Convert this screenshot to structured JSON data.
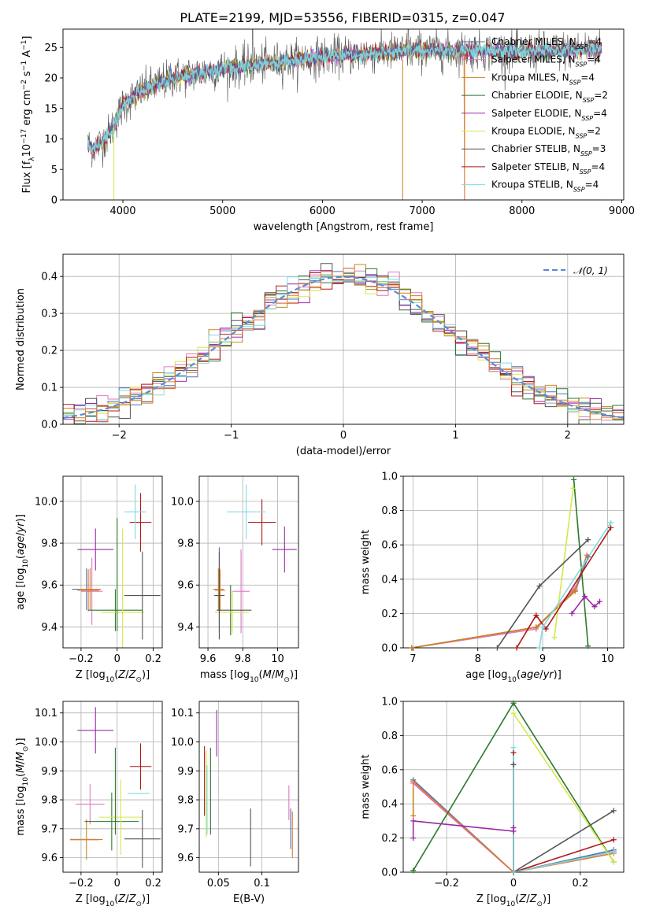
{
  "page_title": "PLATE=2199, MJD=53556, FIBERID=0315, z=0.047",
  "colors": {
    "Chabrier MILES": "#4c72b0",
    "Salpeter MILES": "#e377c2",
    "Kroupa MILES": "#c8861c",
    "Chabrier ELODIE": "#2c7a2c",
    "Salpeter ELODIE": "#9b2aa8",
    "Kroupa ELODIE": "#d4e84a",
    "Chabrier STELIB": "#555555",
    "Salpeter STELIB": "#b01818",
    "Kroupa STELIB": "#7fdbe0",
    "extra": "#e07a3a",
    "normal": "#5b8bd6",
    "grid": "#b0b0b0"
  },
  "chart_data": [
    {
      "id": "spectrum",
      "type": "line",
      "title": "PLATE=2199, MJD=53556, FIBERID=0315, z=0.047",
      "xlabel": "wavelength [Angstrom, rest frame]",
      "ylabel": "Flux [fλ10⁻¹⁷ erg cm⁻² s⁻¹ A⁻¹]",
      "xlim": [
        3400,
        9020
      ],
      "ylim": [
        0,
        28
      ],
      "xticks": [
        4000,
        5000,
        6000,
        7000,
        8000,
        9000
      ],
      "yticks": [
        0,
        5,
        10,
        15,
        20,
        25
      ],
      "grid": false,
      "legend_placement": "top-right",
      "legend": [
        {
          "base": "Chabrier MILES",
          "nssp": "4"
        },
        {
          "base": "Salpeter MILES",
          "nssp": "4"
        },
        {
          "base": "Kroupa MILES",
          "nssp": "4"
        },
        {
          "base": "Chabrier ELODIE",
          "nssp": "2"
        },
        {
          "base": "Salpeter ELODIE",
          "nssp": "4"
        },
        {
          "base": "Kroupa ELODIE",
          "nssp": "2"
        },
        {
          "base": "Chabrier STELIB",
          "nssp": "3"
        },
        {
          "base": "Salpeter STELIB",
          "nssp": "4"
        },
        {
          "base": "Kroupa STELIB",
          "nssp": "4"
        }
      ],
      "continuum": {
        "x": [
          3650,
          3700,
          3800,
          3900,
          4000,
          4200,
          4500,
          5000,
          5500,
          6000,
          6500,
          7000,
          7500,
          8000,
          8500,
          8800
        ],
        "y": [
          9,
          8.5,
          9.5,
          12,
          15.5,
          18,
          20,
          21.5,
          22.5,
          23.5,
          24,
          24.5,
          24.5,
          24.3,
          24.5,
          25
        ]
      }
    },
    {
      "id": "residuals",
      "type": "line",
      "xlabel": "(data-model)/error",
      "ylabel": "Normed distribution",
      "xlim": [
        -2.5,
        2.5
      ],
      "ylim": [
        0,
        0.46
      ],
      "xticks": [
        -2,
        -1,
        0,
        1,
        2
      ],
      "yticks": [
        0.0,
        0.1,
        0.2,
        0.3,
        0.4
      ],
      "grid": true,
      "legend_placement": "top-right",
      "normal_label": "𝒩(0, 1)"
    },
    {
      "id": "age-vs-Z",
      "type": "scatter",
      "xlabel": "Z [log10(Z/Z⊙)]",
      "ylabel": "age  [log10(age/yr)]",
      "xlim": [
        -0.3,
        0.25
      ],
      "ylim": [
        9.3,
        10.12
      ],
      "xticks": [
        -0.2,
        0.0,
        0.2
      ],
      "yticks": [
        9.4,
        9.6,
        9.8,
        10.0
      ],
      "grid": true,
      "points": [
        {
          "series": "Chabrier MILES",
          "x": -0.17,
          "y": 9.58,
          "xerr": 0.08,
          "yerr": 0.1
        },
        {
          "series": "Salpeter MILES",
          "x": -0.14,
          "y": 9.57,
          "xerr": 0.06,
          "yerr": 0.16
        },
        {
          "series": "Kroupa MILES",
          "x": -0.15,
          "y": 9.58,
          "xerr": 0.06,
          "yerr": 0.1
        },
        {
          "series": "extra",
          "x": -0.16,
          "y": 9.575,
          "xerr": 0.06,
          "yerr": 0.1
        },
        {
          "series": "Chabrier ELODIE",
          "x": -0.01,
          "y": 9.48,
          "xerr": 0.15,
          "yerr": 0.1
        },
        {
          "series": "Salpeter ELODIE",
          "x": -0.12,
          "y": 9.77,
          "xerr": 0.1,
          "yerr": 0.1
        },
        {
          "series": "Kroupa ELODIE",
          "x": 0.03,
          "y": 9.47,
          "xerr": 0.12,
          "yerr": 0.4
        },
        {
          "series": "Chabrier STELIB",
          "x": 0.14,
          "y": 9.55,
          "xerr": 0.1,
          "yerr": 0.21
        },
        {
          "series": "Salpeter STELIB",
          "x": 0.13,
          "y": 9.9,
          "xerr": 0.06,
          "yerr": 0.14
        },
        {
          "series": "Kroupa STELIB",
          "x": 0.1,
          "y": 9.95,
          "xerr": 0.06,
          "yerr": 0.13
        },
        {
          "series": "Chabrier ELODIE",
          "x": 0.0,
          "y": 9.65,
          "xerr": 0.0,
          "yerr": 0.27
        }
      ]
    },
    {
      "id": "age-vs-mass",
      "type": "scatter",
      "xlabel": "mass [log10(M/M⊙)]",
      "ylabel": "",
      "xlim": [
        9.55,
        10.12
      ],
      "ylim": [
        9.3,
        10.12
      ],
      "xticks": [
        9.6,
        9.8,
        10.0
      ],
      "yticks": [
        9.4,
        9.6,
        9.8,
        10.0
      ],
      "grid": true,
      "points": [
        {
          "series": "Chabrier MILES",
          "x": 9.665,
          "y": 9.58,
          "xerr": 0.0,
          "yerr": 0.2
        },
        {
          "series": "Salpeter MILES",
          "x": 9.79,
          "y": 9.57,
          "xerr": 0.05,
          "yerr": 0.2
        },
        {
          "series": "Kroupa MILES",
          "x": 9.66,
          "y": 9.58,
          "xerr": 0.03,
          "yerr": 0.1
        },
        {
          "series": "extra",
          "x": 9.67,
          "y": 9.575,
          "xerr": 0.03,
          "yerr": 0.1
        },
        {
          "series": "Chabrier ELODIE",
          "x": 9.73,
          "y": 9.48,
          "xerr": 0.0,
          "yerr": 0.12
        },
        {
          "series": "Salpeter ELODIE",
          "x": 10.04,
          "y": 9.77,
          "xerr": 0.07,
          "yerr": 0.11
        },
        {
          "series": "Kroupa ELODIE",
          "x": 9.74,
          "y": 9.47,
          "xerr": 0.1,
          "yerr": 0.1
        },
        {
          "series": "Chabrier STELIB",
          "x": 9.665,
          "y": 9.55,
          "xerr": 0.03,
          "yerr": 0.21
        },
        {
          "series": "Salpeter STELIB",
          "x": 9.91,
          "y": 9.9,
          "xerr": 0.08,
          "yerr": 0.11
        },
        {
          "series": "Kroupa STELIB",
          "x": 9.82,
          "y": 9.95,
          "xerr": 0.11,
          "yerr": 0.13
        },
        {
          "series": "Chabrier STELIB",
          "x": 9.75,
          "y": 9.48,
          "xerr": 0.1,
          "yerr": 0.0
        }
      ]
    },
    {
      "id": "weight-vs-age",
      "type": "line",
      "xlabel": "age  [log10(age/yr)]",
      "ylabel": "mass weight",
      "xlim": [
        6.85,
        10.25
      ],
      "ylim": [
        0,
        1.0
      ],
      "xticks": [
        7,
        8,
        9,
        10
      ],
      "yticks": [
        0.0,
        0.2,
        0.4,
        0.6,
        0.8,
        1.0
      ],
      "grid": true,
      "series": [
        {
          "name": "Chabrier MILES",
          "x": [
            6.98,
            8.9,
            9.5,
            9.7
          ],
          "y": [
            0.0,
            0.12,
            0.33,
            0.53
          ]
        },
        {
          "name": "extra",
          "x": [
            6.98,
            8.9,
            9.5,
            9.68
          ],
          "y": [
            0.0,
            0.12,
            0.34,
            0.54
          ]
        },
        {
          "name": "Salpeter MILES",
          "x": [
            6.98,
            8.9,
            9.5
          ],
          "y": [
            0.0,
            0.11,
            0.35
          ]
        },
        {
          "name": "Kroupa MILES",
          "x": [
            6.98,
            8.9,
            9.5
          ],
          "y": [
            0.0,
            0.12,
            0.33
          ]
        },
        {
          "name": "Chabrier ELODIE",
          "x": [
            9.48,
            9.7
          ],
          "y": [
            0.98,
            0.01
          ]
        },
        {
          "name": "Salpeter ELODIE",
          "x": [
            9.45,
            9.65,
            9.8,
            9.88
          ],
          "y": [
            0.2,
            0.3,
            0.24,
            0.27
          ]
        },
        {
          "name": "Kroupa ELODIE",
          "x": [
            9.18,
            9.47
          ],
          "y": [
            0.06,
            0.93
          ]
        },
        {
          "name": "Chabrier STELIB",
          "x": [
            8.3,
            8.95,
            9.7
          ],
          "y": [
            0.0,
            0.36,
            0.63
          ]
        },
        {
          "name": "Salpeter STELIB",
          "x": [
            8.6,
            8.9,
            9.05,
            10.05
          ],
          "y": [
            0.0,
            0.19,
            0.11,
            0.7
          ]
        },
        {
          "name": "Kroupa STELIB",
          "x": [
            8.95,
            9.0,
            10.05
          ],
          "y": [
            0.0,
            0.12,
            0.73
          ]
        }
      ]
    },
    {
      "id": "mass-vs-Z",
      "type": "scatter",
      "xlabel": "Z [log10(Z/Z⊙)]",
      "ylabel": "mass [log10(M/M⊙)]",
      "xlim": [
        -0.3,
        0.25
      ],
      "ylim": [
        9.55,
        10.14
      ],
      "xticks": [
        -0.2,
        0.0,
        0.2
      ],
      "yticks": [
        9.6,
        9.7,
        9.8,
        9.9,
        10.0,
        10.1
      ],
      "grid": true,
      "points": [
        {
          "series": "Chabrier MILES",
          "x": -0.19,
          "y": 9.663,
          "xerr": 0.07,
          "yerr": 0.0
        },
        {
          "series": "Salpeter MILES",
          "x": -0.15,
          "y": 9.785,
          "xerr": 0.08,
          "yerr": 0.07
        },
        {
          "series": "Kroupa MILES",
          "x": -0.17,
          "y": 9.663,
          "xerr": 0.09,
          "yerr": 0.07
        },
        {
          "series": "extra",
          "x": -0.18,
          "y": 9.662,
          "xerr": 0.08,
          "yerr": 0.0
        },
        {
          "series": "Chabrier ELODIE",
          "x": -0.03,
          "y": 9.725,
          "xerr": 0.15,
          "yerr": 0.1
        },
        {
          "series": "Salpeter ELODIE",
          "x": -0.12,
          "y": 10.04,
          "xerr": 0.1,
          "yerr": 0.08
        },
        {
          "series": "Kroupa ELODIE",
          "x": 0.02,
          "y": 9.74,
          "xerr": 0.12,
          "yerr": 0.13
        },
        {
          "series": "Chabrier STELIB",
          "x": 0.14,
          "y": 9.665,
          "xerr": 0.1,
          "yerr": 0.1
        },
        {
          "series": "Salpeter STELIB",
          "x": 0.13,
          "y": 9.915,
          "xerr": 0.06,
          "yerr": 0.08
        },
        {
          "series": "Kroupa STELIB",
          "x": 0.12,
          "y": 9.822,
          "xerr": 0.06,
          "yerr": 0.0
        },
        {
          "series": "Chabrier ELODIE",
          "x": -0.01,
          "y": 9.83,
          "xerr": 0.0,
          "yerr": 0.15
        }
      ]
    },
    {
      "id": "mass-vs-EBV",
      "type": "scatter",
      "xlabel": "E(B-V)",
      "ylabel": "",
      "xlim": [
        0.028,
        0.142
      ],
      "ylim": [
        9.55,
        10.14
      ],
      "xticks": [
        0.05,
        0.1
      ],
      "yticks": [
        9.6,
        9.7,
        9.8,
        9.9,
        10.0,
        10.1
      ],
      "grid": true,
      "points": [
        {
          "series": "Salpeter STELIB",
          "x": 0.034,
          "y": 9.865,
          "xerr": 0.0,
          "yerr": 0.12
        },
        {
          "series": "Kroupa ELODIE",
          "x": 0.036,
          "y": 9.82,
          "xerr": 0.0,
          "yerr": 0.15
        },
        {
          "series": "Kroupa STELIB",
          "x": 0.037,
          "y": 9.8,
          "xerr": 0.0,
          "yerr": 0.12
        },
        {
          "series": "Chabrier ELODIE",
          "x": 0.041,
          "y": 9.83,
          "xerr": 0.0,
          "yerr": 0.15
        },
        {
          "series": "Salpeter ELODIE",
          "x": 0.048,
          "y": 10.03,
          "xerr": 0.0,
          "yerr": 0.08
        },
        {
          "series": "Chabrier STELIB",
          "x": 0.087,
          "y": 9.67,
          "xerr": 0.0,
          "yerr": 0.1
        },
        {
          "series": "Salpeter MILES",
          "x": 0.131,
          "y": 9.79,
          "xerr": 0.0,
          "yerr": 0.06
        },
        {
          "series": "Chabrier MILES",
          "x": 0.133,
          "y": 9.7,
          "xerr": 0.0,
          "yerr": 0.07
        },
        {
          "series": "extra",
          "x": 0.135,
          "y": 9.68,
          "xerr": 0.0,
          "yerr": 0.08
        }
      ]
    },
    {
      "id": "weight-vs-Z",
      "type": "line",
      "xlabel": "Z [log10(Z/Z⊙)]",
      "ylabel": "mass weight",
      "xlim": [
        -0.33,
        0.33
      ],
      "ylim": [
        0,
        1.0
      ],
      "xticks": [
        -0.2,
        0.0,
        0.2
      ],
      "yticks": [
        0.0,
        0.2,
        0.4,
        0.6,
        0.8,
        1.0
      ],
      "grid": true,
      "series": [
        {
          "name": "Chabrier MILES",
          "x": [
            -0.3,
            0.0,
            0.3
          ],
          "y": [
            0.54,
            0.0,
            0.13
          ]
        },
        {
          "name": "Salpeter MILES",
          "x": [
            -0.3,
            0.0,
            0.3
          ],
          "y": [
            0.52,
            0.0,
            0.12
          ]
        },
        {
          "name": "Kroupa MILES",
          "x": [
            -0.3,
            -0.3,
            0.0,
            0.3
          ],
          "y": [
            0.33,
            0.53,
            0.0,
            0.12
          ]
        },
        {
          "name": "extra",
          "x": [
            -0.3,
            0.0,
            0.3
          ],
          "y": [
            0.53,
            0.0,
            0.11
          ]
        },
        {
          "name": "Chabrier ELODIE",
          "x": [
            -0.3,
            0.0,
            0.3
          ],
          "y": [
            0.01,
            0.99,
            0.06
          ]
        },
        {
          "name": "Salpeter ELODIE",
          "x": [
            -0.3,
            -0.3,
            0.0,
            0.0
          ],
          "y": [
            0.2,
            0.3,
            0.24,
            0.26
          ]
        },
        {
          "name": "Kroupa ELODIE",
          "x": [
            0.0,
            0.3
          ],
          "y": [
            0.93,
            0.06
          ]
        },
        {
          "name": "Chabrier STELIB",
          "x": [
            0.0,
            0.0,
            0.3
          ],
          "y": [
            0.63,
            0.0,
            0.36
          ]
        },
        {
          "name": "Salpeter STELIB",
          "x": [
            0.0,
            0.0,
            0.3
          ],
          "y": [
            0.7,
            0.0,
            0.19
          ]
        },
        {
          "name": "Kroupa STELIB",
          "x": [
            0.0,
            0.0,
            0.3
          ],
          "y": [
            0.73,
            0.0,
            0.12
          ]
        }
      ]
    }
  ]
}
